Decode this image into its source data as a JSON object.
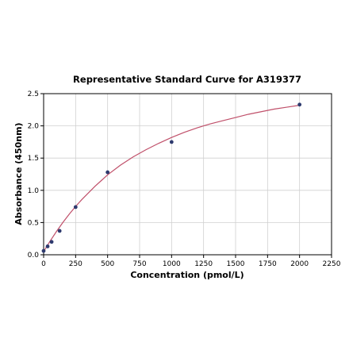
{
  "chart_data": {
    "type": "scatter",
    "title": "Representative Standard Curve for A319377",
    "xlabel": "Concentration (pmol/L)",
    "ylabel": "Absorbance (450nm)",
    "xlim": [
      0,
      2250
    ],
    "ylim": [
      0,
      2.5
    ],
    "x_ticks": [
      "0",
      "250",
      "500",
      "750",
      "1000",
      "1250",
      "1500",
      "1750",
      "2000",
      "2250"
    ],
    "y_ticks": [
      "0.0",
      "0.5",
      "1.0",
      "1.5",
      "2.0",
      "2.5"
    ],
    "grid": true,
    "series": [
      {
        "kind": "points",
        "x": [
          0,
          31.25,
          62.5,
          125,
          250,
          500,
          1000,
          2000
        ],
        "y": [
          0.06,
          0.13,
          0.2,
          0.37,
          0.74,
          1.28,
          1.75,
          2.33
        ]
      },
      {
        "kind": "fit-curve",
        "x": [
          0,
          50,
          100,
          150,
          200,
          250,
          300,
          350,
          400,
          450,
          500,
          600,
          700,
          800,
          900,
          1000,
          1100,
          1200,
          1300,
          1400,
          1500,
          1600,
          1700,
          1800,
          1900,
          2000
        ],
        "y": [
          0.05,
          0.21,
          0.36,
          0.5,
          0.63,
          0.75,
          0.86,
          0.96,
          1.06,
          1.15,
          1.24,
          1.39,
          1.52,
          1.63,
          1.73,
          1.82,
          1.9,
          1.97,
          2.03,
          2.08,
          2.13,
          2.18,
          2.22,
          2.26,
          2.29,
          2.32
        ]
      }
    ],
    "colors": {
      "points": "#2e3a6e",
      "curve": "#c0506a",
      "grid": "#d0d0d0"
    }
  }
}
